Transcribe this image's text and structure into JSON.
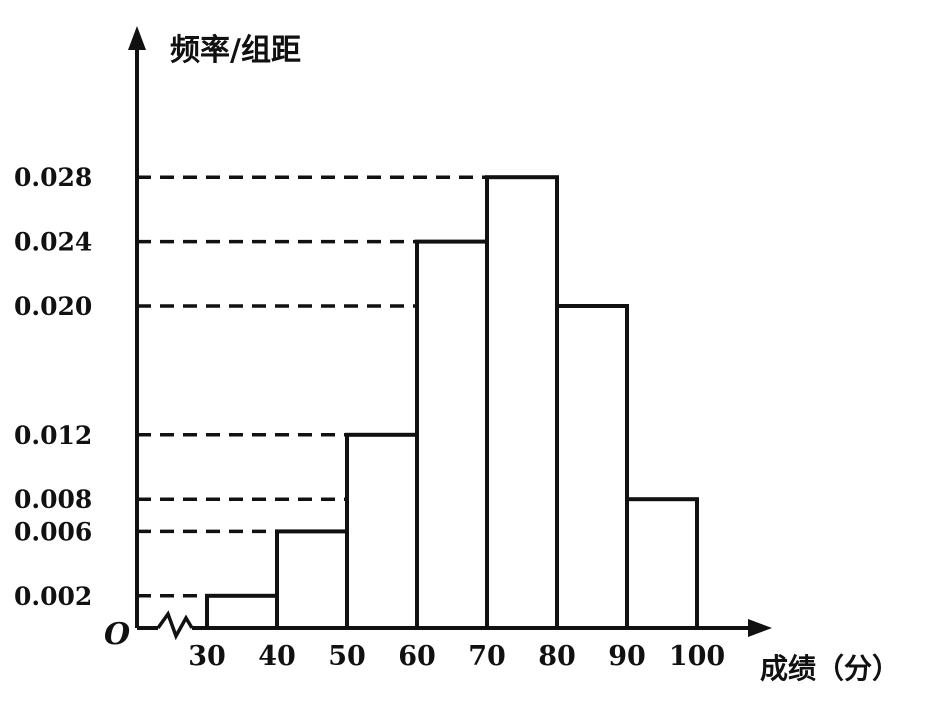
{
  "chart_data": {
    "type": "bar",
    "title": "",
    "ylabel": "频率/组距",
    "xlabel": "成绩（分）",
    "origin_label": "O",
    "bins": [
      [
        30,
        40
      ],
      [
        40,
        50
      ],
      [
        50,
        60
      ],
      [
        60,
        70
      ],
      [
        70,
        80
      ],
      [
        80,
        90
      ],
      [
        90,
        100
      ]
    ],
    "values": [
      0.002,
      0.006,
      0.012,
      0.024,
      0.028,
      0.02,
      0.008
    ],
    "x_ticks": [
      "30",
      "40",
      "50",
      "60",
      "70",
      "80",
      "90",
      "100"
    ],
    "y_ticks": [
      "0.002",
      "0.006",
      "0.008",
      "0.012",
      "0.020",
      "0.024",
      "0.028"
    ],
    "y_tick_values": [
      0.002,
      0.006,
      0.008,
      0.012,
      0.02,
      0.024,
      0.028
    ],
    "xlim": [
      30,
      100
    ],
    "ylim": [
      0,
      0.028
    ],
    "axis_break": true,
    "guide_lines": "dashed",
    "grid": false,
    "line_color": "#111111"
  }
}
